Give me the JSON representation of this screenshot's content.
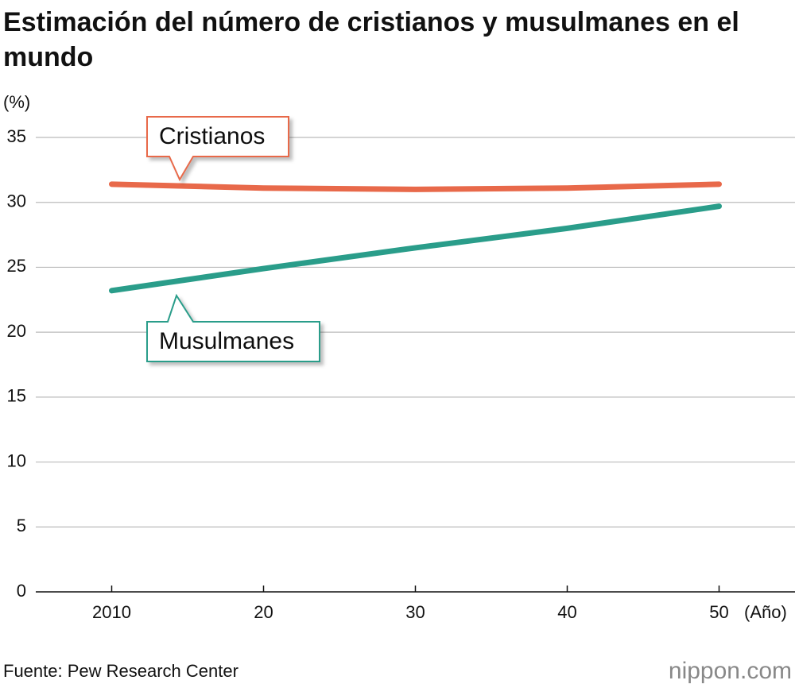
{
  "chart_data": {
    "type": "line",
    "title": "Estimación del número de cristianos y musulmanes en el mundo",
    "y_label": "(%)",
    "x_label": "(Año)",
    "source": "Fuente: Pew Research Center",
    "logo": "nippon.com",
    "x": [
      2010,
      2020,
      2030,
      2040,
      2050
    ],
    "series": [
      {
        "name": "Cristianos",
        "color": "#e8694a",
        "values": [
          31.4,
          31.1,
          31.0,
          31.1,
          31.4
        ]
      },
      {
        "name": "Musulmanes",
        "color": "#2a9d8a",
        "values": [
          23.2,
          24.9,
          26.5,
          28.0,
          29.7
        ]
      }
    ],
    "xlim": [
      2005,
      2055
    ],
    "xticks": [
      2010,
      {
        "value": 2020,
        "label": "20"
      },
      {
        "value": 2030,
        "label": "30"
      },
      {
        "value": 2040,
        "label": "40"
      },
      {
        "value": 2050,
        "label": "50"
      }
    ],
    "ylim": [
      0,
      35
    ],
    "yticks": [
      0,
      5,
      10,
      15,
      20,
      25,
      30,
      35
    ],
    "grid": true
  }
}
